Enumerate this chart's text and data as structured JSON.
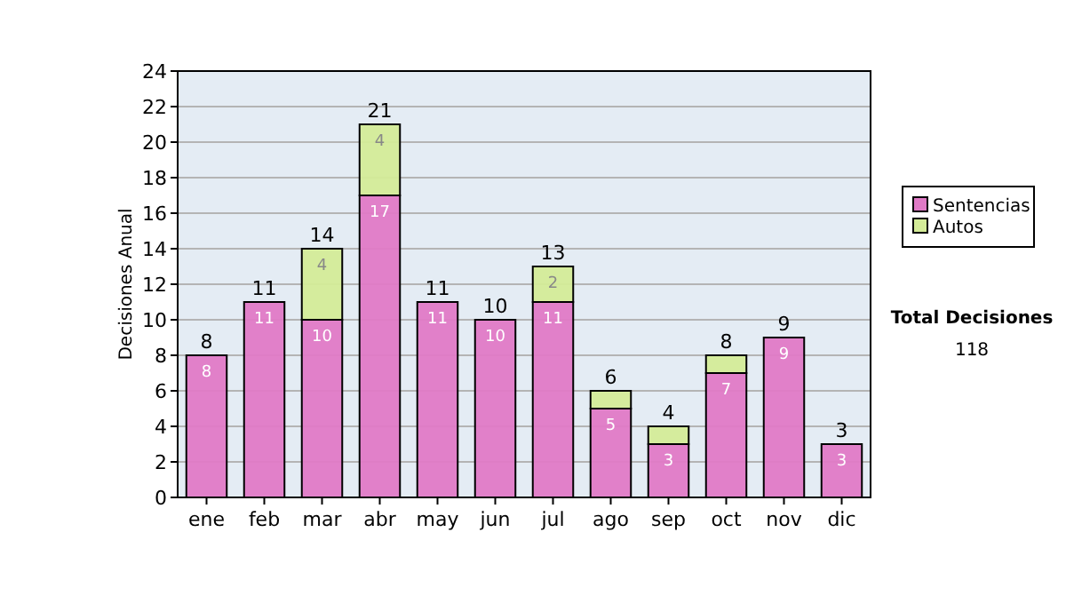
{
  "chart_data": {
    "type": "bar",
    "stacked": true,
    "ylabel": "Decisiones Anual",
    "categories": [
      "ene",
      "feb",
      "mar",
      "abr",
      "may",
      "jun",
      "jul",
      "ago",
      "sep",
      "oct",
      "nov",
      "dic"
    ],
    "series": [
      {
        "name": "Sentencias",
        "color": "#e07ac6",
        "values": [
          8,
          11,
          10,
          17,
          11,
          10,
          11,
          5,
          3,
          7,
          9,
          3
        ],
        "value_labels": [
          "8",
          "11",
          "10",
          "17",
          "11",
          "10",
          "11",
          "5",
          "3",
          "7",
          "9",
          "3"
        ]
      },
      {
        "name": "Autos",
        "color": "#d4ec98",
        "values": [
          null,
          null,
          4,
          4,
          null,
          null,
          2,
          1,
          1,
          1,
          null,
          null
        ],
        "value_labels": [
          null,
          null,
          "4",
          "4",
          null,
          null,
          "2",
          null,
          null,
          null,
          null,
          null
        ]
      }
    ],
    "totals": [
      "8",
      "11",
      "14",
      "21",
      "11",
      "10",
      "13",
      "6",
      "4",
      "8",
      "9",
      "3"
    ],
    "ylim": [
      0,
      24
    ],
    "yticks": [
      0,
      2,
      4,
      6,
      8,
      10,
      12,
      14,
      16,
      18,
      20,
      22,
      24
    ],
    "grid": "y",
    "legend": "right",
    "annotations": [
      "Total Decisiones",
      "118"
    ]
  }
}
